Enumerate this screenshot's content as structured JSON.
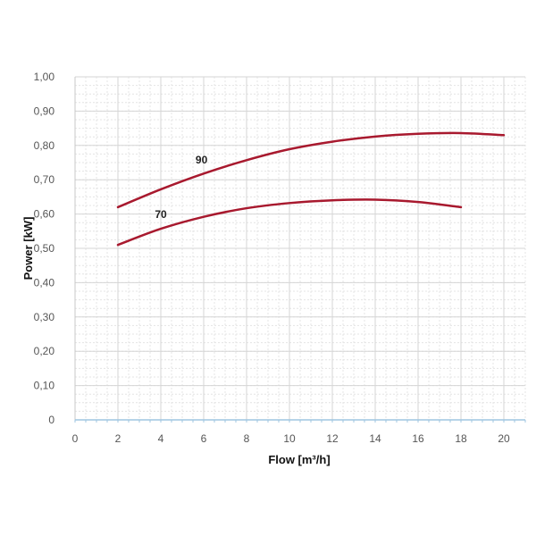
{
  "chart_data": {
    "type": "line",
    "title": "",
    "xlabel": "Flow [m³/h]",
    "ylabel": "Power [kW]",
    "xlim": [
      0,
      21
    ],
    "ylim": [
      0,
      1.0
    ],
    "x_ticks": [
      "0",
      "2",
      "4",
      "6",
      "8",
      "10",
      "12",
      "14",
      "16",
      "18",
      "20"
    ],
    "y_ticks": [
      "0",
      "0,10",
      "0,20",
      "0,30",
      "0,40",
      "0,50",
      "0,60",
      "0,70",
      "0,80",
      "0,90",
      "1,00"
    ],
    "grid": true,
    "legend": "none",
    "line_color": "#a8192e",
    "series": [
      {
        "name": "90",
        "x": [
          2,
          4,
          6,
          8,
          10,
          12,
          14,
          16,
          18,
          20
        ],
        "y": [
          0.62,
          0.672,
          0.718,
          0.757,
          0.789,
          0.811,
          0.826,
          0.834,
          0.836,
          0.83
        ]
      },
      {
        "name": "70",
        "x": [
          2,
          4,
          6,
          8,
          10,
          12,
          14,
          16,
          18
        ],
        "y": [
          0.51,
          0.557,
          0.592,
          0.617,
          0.632,
          0.64,
          0.642,
          0.635,
          0.62
        ]
      }
    ]
  }
}
